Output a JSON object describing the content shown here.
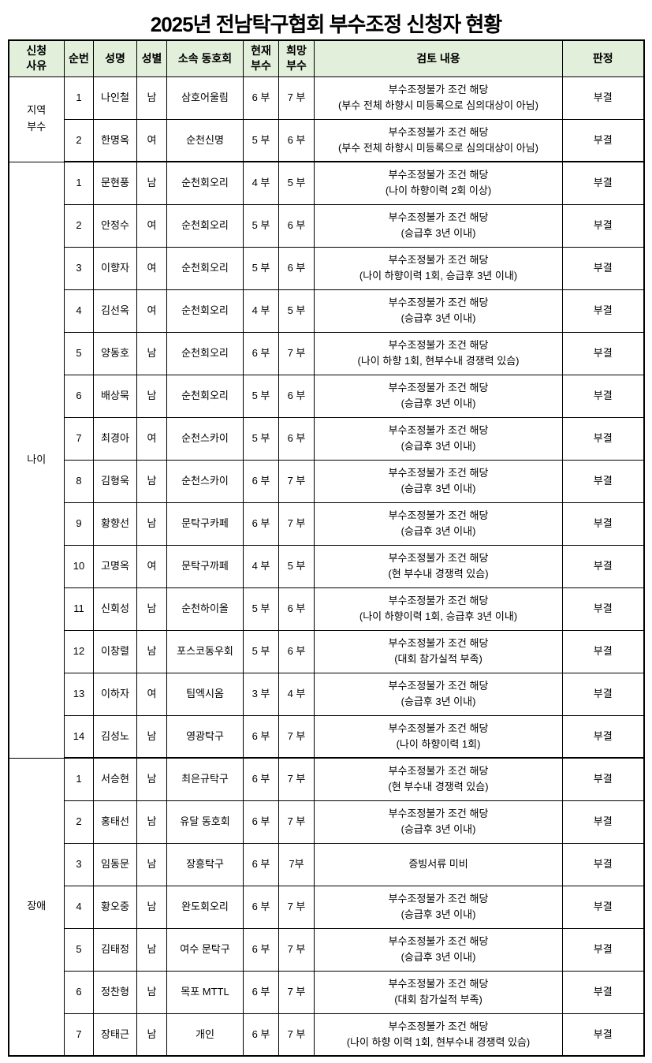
{
  "page": {
    "title": "2025년 전남탁구협회 부수조정 신청자 현황"
  },
  "colors": {
    "header_bg": "#e2efda",
    "border": "#000000",
    "text": "#000000",
    "page_bg": "#ffffff"
  },
  "table": {
    "headers": [
      "신청\n사유",
      "순번",
      "성명",
      "성별",
      "소속 동호회",
      "현재\n부수",
      "희망\n부수",
      "검토 내용",
      "판정"
    ],
    "groups": [
      {
        "reason": "지역\n부수",
        "rows": [
          {
            "no": "1",
            "name": "나인철",
            "gender": "남",
            "club": "삼호어울림",
            "current": "6 부",
            "desired": "7 부",
            "review": [
              "부수조정불가 조건 해당",
              "(부수 전체 하향시 미등록으로 심의대상이 아님)"
            ],
            "result": "부결"
          },
          {
            "no": "2",
            "name": "한명옥",
            "gender": "여",
            "club": "순천신명",
            "current": "5 부",
            "desired": "6 부",
            "review": [
              "부수조정불가 조건 해당",
              "(부수 전체 하향시 미등록으로 심의대상이 아님)"
            ],
            "result": "부결"
          }
        ]
      },
      {
        "reason": "나이",
        "rows": [
          {
            "no": "1",
            "name": "문현풍",
            "gender": "남",
            "club": "순천회오리",
            "current": "4 부",
            "desired": "5 부",
            "review": [
              "부수조정불가 조건 해당",
              "(나이 하향이력 2회 이상)"
            ],
            "result": "부결"
          },
          {
            "no": "2",
            "name": "안정수",
            "gender": "여",
            "club": "순천회오리",
            "current": "5 부",
            "desired": "6 부",
            "review": [
              "부수조정불가 조건 해당",
              "(승급후 3년 이내)"
            ],
            "result": "부결"
          },
          {
            "no": "3",
            "name": "이향자",
            "gender": "여",
            "club": "순천회오리",
            "current": "5 부",
            "desired": "6 부",
            "review": [
              "부수조정불가 조건 해당",
              "(나이 하향이력 1회, 승급후 3년 이내)"
            ],
            "result": "부결"
          },
          {
            "no": "4",
            "name": "김선옥",
            "gender": "여",
            "club": "순천회오리",
            "current": "4 부",
            "desired": "5 부",
            "review": [
              "부수조정불가 조건 해당",
              "(승급후 3년 이내)"
            ],
            "result": "부결"
          },
          {
            "no": "5",
            "name": "양동호",
            "gender": "남",
            "club": "순천회오리",
            "current": "6 부",
            "desired": "7 부",
            "review": [
              "부수조정불가 조건 해당",
              "(나이 하향 1회, 현부수내 경쟁력 있슴)"
            ],
            "result": "부결"
          },
          {
            "no": "6",
            "name": "배상묵",
            "gender": "남",
            "club": "순천회오리",
            "current": "5 부",
            "desired": "6 부",
            "review": [
              "부수조정불가 조건 해당",
              "(승급후 3년 이내)"
            ],
            "result": "부결"
          },
          {
            "no": "7",
            "name": "최경아",
            "gender": "여",
            "club": "순천스카이",
            "current": "5 부",
            "desired": "6 부",
            "review": [
              "부수조정불가 조건 해당",
              "(승급후 3년 이내)"
            ],
            "result": "부결"
          },
          {
            "no": "8",
            "name": "김형욱",
            "gender": "남",
            "club": "순천스카이",
            "current": "6 부",
            "desired": "7 부",
            "review": [
              "부수조정불가 조건 해당",
              "(승급후 3년 이내)"
            ],
            "result": "부결"
          },
          {
            "no": "9",
            "name": "황향선",
            "gender": "남",
            "club": "문탁구카페",
            "current": "6 부",
            "desired": "7 부",
            "review": [
              "부수조정불가 조건 해당",
              "(승급후 3년 이내)"
            ],
            "result": "부결"
          },
          {
            "no": "10",
            "name": "고명옥",
            "gender": "여",
            "club": "문탁구까페",
            "current": "4 부",
            "desired": "5 부",
            "review": [
              "부수조정불가 조건 해당",
              "(현 부수내 경쟁력 있슴)"
            ],
            "result": "부결"
          },
          {
            "no": "11",
            "name": "신회성",
            "gender": "남",
            "club": "순천하이올",
            "current": "5 부",
            "desired": "6 부",
            "review": [
              "부수조정불가 조건 해당",
              "(나이 하향이력 1회, 승급후 3년 이내)"
            ],
            "result": "부결"
          },
          {
            "no": "12",
            "name": "이창렬",
            "gender": "남",
            "club": "포스코동우회",
            "current": "5 부",
            "desired": "6 부",
            "review": [
              "부수조정불가 조건 해당",
              "(대회 참가실적 부족)"
            ],
            "result": "부결"
          },
          {
            "no": "13",
            "name": "이하자",
            "gender": "여",
            "club": "팀엑시옴",
            "current": "3 부",
            "desired": "4 부",
            "review": [
              "부수조정불가 조건 해당",
              "(승급후 3년 이내)"
            ],
            "result": "부결"
          },
          {
            "no": "14",
            "name": "김성노",
            "gender": "남",
            "club": "영광탁구",
            "current": "6 부",
            "desired": "7 부",
            "review": [
              "부수조정불가 조건 해당",
              "(나이 하향이력 1회)"
            ],
            "result": "부결"
          }
        ]
      },
      {
        "reason": "장애",
        "rows": [
          {
            "no": "1",
            "name": "서승현",
            "gender": "남",
            "club": "최은규탁구",
            "current": "6 부",
            "desired": "7 부",
            "review": [
              "부수조정불가 조건 해당",
              "(현 부수내 경쟁력 있슴)"
            ],
            "result": "부결"
          },
          {
            "no": "2",
            "name": "홍태선",
            "gender": "남",
            "club": "유달 동호회",
            "current": "6 부",
            "desired": "7 부",
            "review": [
              "부수조정불가 조건 해당",
              "(승급후 3년 이내)"
            ],
            "result": "부결"
          },
          {
            "no": "3",
            "name": "임동문",
            "gender": "남",
            "club": "장흥탁구",
            "current": "6 부",
            "desired": "7부",
            "review": [
              "증빙서류 미비"
            ],
            "result": "부결"
          },
          {
            "no": "4",
            "name": "황오중",
            "gender": "남",
            "club": "완도회오리",
            "current": "6 부",
            "desired": "7 부",
            "review": [
              "부수조정불가 조건 해당",
              "(승급후 3년 이내)"
            ],
            "result": "부결"
          },
          {
            "no": "5",
            "name": "김태정",
            "gender": "남",
            "club": "여수 문탁구",
            "current": "6 부",
            "desired": "7 부",
            "review": [
              "부수조정불가 조건 해당",
              "(승급후 3년 이내)"
            ],
            "result": "부결"
          },
          {
            "no": "6",
            "name": "정찬형",
            "gender": "남",
            "club": "목포 MTTL",
            "current": "6 부",
            "desired": "7 부",
            "review": [
              "부수조정불가 조건 해당",
              "(대회 참가실적 부족)"
            ],
            "result": "부결"
          },
          {
            "no": "7",
            "name": "장태근",
            "gender": "남",
            "club": "개인",
            "current": "6 부",
            "desired": "7 부",
            "review": [
              "부수조정불가 조건 해당",
              "(나이 하향 이력 1회, 현부수내 경쟁력 있슴)"
            ],
            "result": "부결"
          }
        ]
      }
    ]
  }
}
